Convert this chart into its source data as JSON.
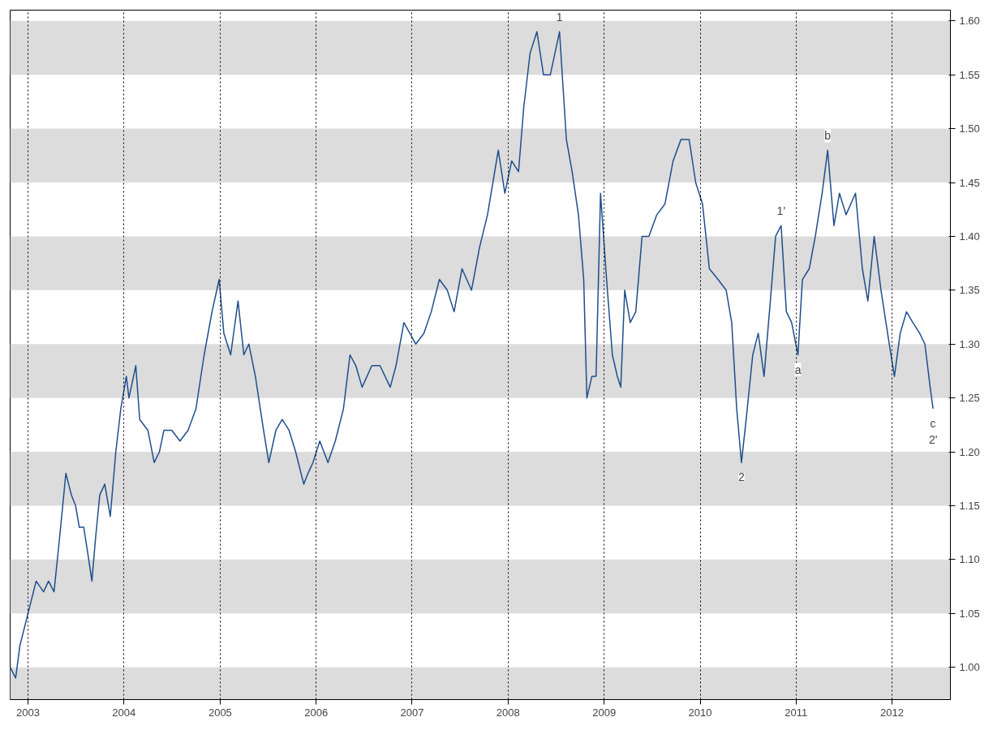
{
  "chart_data": {
    "type": "line",
    "color": "#1f4e8c",
    "x": [
      "2002-10-25",
      "2002-11-15",
      "2002-12-01",
      "2003-01-01",
      "2003-02-01",
      "2003-03-01",
      "2003-03-20",
      "2003-04-10",
      "2003-05-01",
      "2003-05-25",
      "2003-06-15",
      "2003-07-01",
      "2003-07-15",
      "2003-08-01",
      "2003-08-20",
      "2003-09-01",
      "2003-09-15",
      "2003-10-01",
      "2003-10-20",
      "2003-11-10",
      "2003-12-01",
      "2003-12-20",
      "2004-01-10",
      "2004-01-20",
      "2004-02-15",
      "2004-03-01",
      "2004-04-01",
      "2004-04-25",
      "2004-05-15",
      "2004-06-01",
      "2004-07-01",
      "2004-08-01",
      "2004-09-01",
      "2004-10-01",
      "2004-11-01",
      "2004-12-01",
      "2004-12-28",
      "2005-01-15",
      "2005-02-10",
      "2005-03-10",
      "2005-04-01",
      "2005-04-20",
      "2005-05-15",
      "2005-06-15",
      "2005-07-05",
      "2005-08-01",
      "2005-08-25",
      "2005-09-20",
      "2005-10-15",
      "2005-11-15",
      "2005-12-01",
      "2005-12-20",
      "2006-01-15",
      "2006-02-15",
      "2006-03-15",
      "2006-04-15",
      "2006-05-10",
      "2006-06-01",
      "2006-06-25",
      "2006-08-01",
      "2006-09-01",
      "2006-10-10",
      "2006-11-01",
      "2006-12-01",
      "2007-01-15",
      "2007-02-15",
      "2007-03-15",
      "2007-04-15",
      "2007-05-15",
      "2007-06-10",
      "2007-07-10",
      "2007-08-15",
      "2007-09-15",
      "2007-10-15",
      "2007-11-25",
      "2007-12-20",
      "2008-01-15",
      "2008-02-10",
      "2008-03-01",
      "2008-03-25",
      "2008-04-20",
      "2008-05-15",
      "2008-06-10",
      "2008-07-15",
      "2008-08-10",
      "2008-09-01",
      "2008-09-25",
      "2008-10-15",
      "2008-10-27",
      "2008-11-15",
      "2008-12-01",
      "2008-12-18",
      "2009-01-10",
      "2009-02-01",
      "2009-02-20",
      "2009-03-05",
      "2009-03-20",
      "2009-04-10",
      "2009-05-01",
      "2009-05-25",
      "2009-06-20",
      "2009-07-20",
      "2009-08-20",
      "2009-09-20",
      "2009-10-20",
      "2009-11-20",
      "2009-12-15",
      "2010-01-10",
      "2010-02-05",
      "2010-03-10",
      "2010-04-10",
      "2010-05-01",
      "2010-05-20",
      "2010-06-07",
      "2010-06-25",
      "2010-07-20",
      "2010-08-10",
      "2010-09-01",
      "2010-09-25",
      "2010-10-15",
      "2010-11-05",
      "2010-11-25",
      "2010-12-15",
      "2011-01-08",
      "2011-01-25",
      "2011-02-20",
      "2011-03-15",
      "2011-04-10",
      "2011-05-01",
      "2011-05-25",
      "2011-06-15",
      "2011-07-10",
      "2011-08-15",
      "2011-09-10",
      "2011-10-01",
      "2011-10-25",
      "2011-11-20",
      "2011-12-15",
      "2012-01-10",
      "2012-02-01",
      "2012-02-25",
      "2012-03-20",
      "2012-04-15",
      "2012-05-05",
      "2012-05-25",
      "2012-06-05"
    ],
    "values": [
      1.0,
      0.99,
      1.02,
      1.05,
      1.08,
      1.07,
      1.08,
      1.07,
      1.12,
      1.18,
      1.16,
      1.15,
      1.13,
      1.13,
      1.1,
      1.08,
      1.12,
      1.16,
      1.17,
      1.14,
      1.2,
      1.24,
      1.27,
      1.25,
      1.28,
      1.23,
      1.22,
      1.19,
      1.2,
      1.22,
      1.22,
      1.21,
      1.22,
      1.24,
      1.29,
      1.33,
      1.36,
      1.31,
      1.29,
      1.34,
      1.29,
      1.3,
      1.27,
      1.22,
      1.19,
      1.22,
      1.23,
      1.22,
      1.2,
      1.17,
      1.18,
      1.19,
      1.21,
      1.19,
      1.21,
      1.24,
      1.29,
      1.28,
      1.26,
      1.28,
      1.28,
      1.26,
      1.28,
      1.32,
      1.3,
      1.31,
      1.33,
      1.36,
      1.35,
      1.33,
      1.37,
      1.35,
      1.39,
      1.42,
      1.48,
      1.44,
      1.47,
      1.46,
      1.52,
      1.57,
      1.59,
      1.55,
      1.55,
      1.59,
      1.49,
      1.46,
      1.42,
      1.36,
      1.25,
      1.27,
      1.27,
      1.44,
      1.36,
      1.29,
      1.27,
      1.26,
      1.35,
      1.32,
      1.33,
      1.4,
      1.4,
      1.42,
      1.43,
      1.47,
      1.49,
      1.49,
      1.45,
      1.43,
      1.37,
      1.36,
      1.35,
      1.32,
      1.24,
      1.19,
      1.23,
      1.29,
      1.31,
      1.27,
      1.34,
      1.4,
      1.41,
      1.33,
      1.32,
      1.29,
      1.36,
      1.37,
      1.4,
      1.44,
      1.48,
      1.41,
      1.44,
      1.42,
      1.44,
      1.37,
      1.34,
      1.4,
      1.35,
      1.31,
      1.27,
      1.31,
      1.33,
      1.32,
      1.31,
      1.3,
      1.26,
      1.24
    ],
    "xlim": [
      "2002-10-25",
      "2012-08-10"
    ],
    "xticks": [
      "2003",
      "2004",
      "2005",
      "2006",
      "2007",
      "2008",
      "2009",
      "2010",
      "2011",
      "2012"
    ],
    "ylim": [
      0.97,
      1.61
    ],
    "yticks": [
      {
        "value": 1.0,
        "label": "1.00"
      },
      {
        "value": 1.05,
        "label": "1.05"
      },
      {
        "value": 1.1,
        "label": "1.10"
      },
      {
        "value": 1.15,
        "label": "1.15"
      },
      {
        "value": 1.2,
        "label": "1.20"
      },
      {
        "value": 1.25,
        "label": "1.25"
      },
      {
        "value": 1.3,
        "label": "1.30"
      },
      {
        "value": 1.35,
        "label": "1.35"
      },
      {
        "value": 1.4,
        "label": "1.40"
      },
      {
        "value": 1.45,
        "label": "1.45"
      },
      {
        "value": 1.5,
        "label": "1.50"
      },
      {
        "value": 1.55,
        "label": "1.55"
      },
      {
        "value": 1.6,
        "label": "1.60"
      }
    ],
    "grid": "x",
    "bands": [
      {
        "axis": "y",
        "from": 0.97,
        "to": 1.0,
        "color": "#dcdcdc"
      },
      {
        "axis": "y",
        "from": 1.05,
        "to": 1.1,
        "color": "#dcdcdc"
      },
      {
        "axis": "y",
        "from": 1.15,
        "to": 1.2,
        "color": "#dcdcdc"
      },
      {
        "axis": "y",
        "from": 1.25,
        "to": 1.3,
        "color": "#dcdcdc"
      },
      {
        "axis": "y",
        "from": 1.35,
        "to": 1.4,
        "color": "#dcdcdc"
      },
      {
        "axis": "y",
        "from": 1.45,
        "to": 1.5,
        "color": "#dcdcdc"
      },
      {
        "axis": "y",
        "from": 1.55,
        "to": 1.6,
        "color": "#dcdcdc"
      }
    ],
    "annotations": [
      {
        "text": "1",
        "x": "2008-07-15",
        "y": 1.59
      },
      {
        "text": "1'",
        "x": "2010-11-05",
        "y": 1.41
      },
      {
        "text": "2",
        "x": "2010-06-07",
        "y": 1.19
      },
      {
        "text": "a",
        "x": "2011-01-08",
        "y": 1.29
      },
      {
        "text": "b",
        "x": "2011-05-01",
        "y": 1.48
      },
      {
        "text": "c",
        "x": "2012-06-05",
        "y": 1.24
      },
      {
        "text": "2'",
        "x": "2012-06-05",
        "y": 1.24
      }
    ]
  }
}
